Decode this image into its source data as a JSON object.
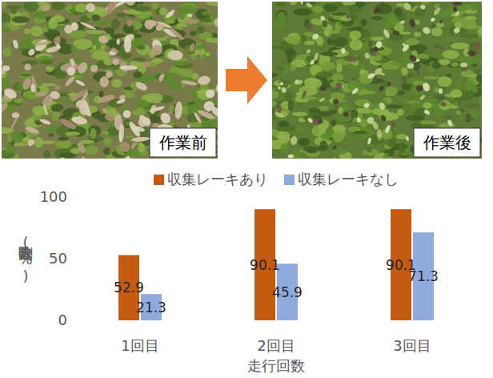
{
  "photos": [
    {
      "label": "作業前"
    },
    {
      "label": "作業後"
    }
  ],
  "chart_data": {
    "type": "bar",
    "categories": [
      "1回目",
      "2回目",
      "3回目"
    ],
    "series": [
      {
        "name": "収集レーキあり",
        "color": "#c55a11",
        "values": [
          52.9,
          90.1,
          90.1
        ]
      },
      {
        "name": "収集レーキなし",
        "color": "#8faadc",
        "values": [
          21.3,
          45.9,
          71.3
        ]
      }
    ],
    "x_label": "走行回数",
    "y_label": "除去割合(%)",
    "ylim": [
      0,
      100
    ],
    "yticks": [
      0,
      50,
      100
    ],
    "grid": false,
    "legend": "top",
    "data_labels": true
  }
}
